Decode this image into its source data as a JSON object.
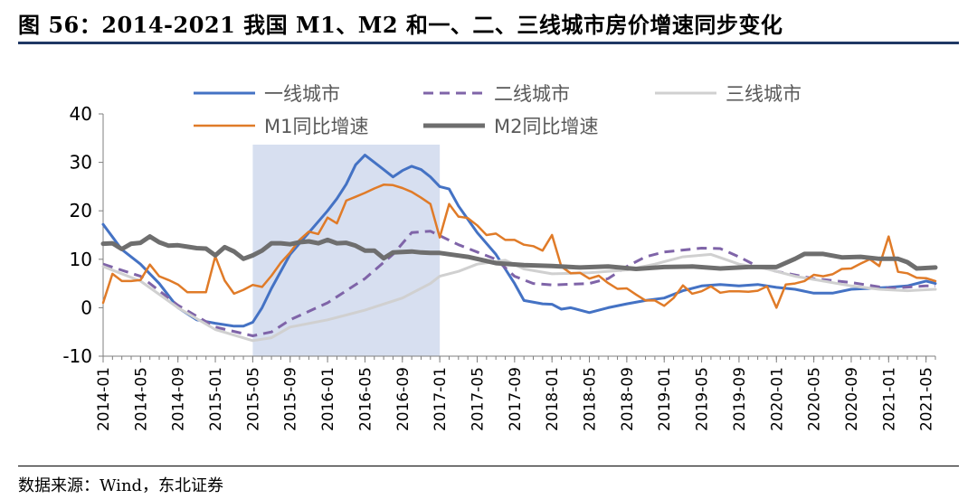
{
  "figure": {
    "title": "图 56：2014-2021 我国 M1、M2 和一、二、三线城市房价增速同步变化",
    "source": "数据来源：Wind，东北证券"
  },
  "chart_data": {
    "type": "line",
    "ylim": [
      -10,
      40
    ],
    "yticks": [
      -10,
      0,
      10,
      20,
      30,
      40
    ],
    "x_start": "2014-01",
    "x_end": "2021-06",
    "xticks": [
      "2014-01",
      "2014-05",
      "2014-09",
      "2015-01",
      "2015-05",
      "2015-09",
      "2016-01",
      "2016-05",
      "2016-09",
      "2017-01",
      "2017-05",
      "2017-09",
      "2018-01",
      "2018-05",
      "2018-09",
      "2019-01",
      "2019-05",
      "2019-09",
      "2020-01",
      "2020-05",
      "2020-09",
      "2021-01",
      "2021-05"
    ],
    "highlight": {
      "from": "2015-05",
      "to": "2017-01",
      "color": "#d7dff0"
    },
    "legend_placement": "top",
    "grid": false,
    "series": [
      {
        "name": "一线城市",
        "color": "#4472c4",
        "dash": "solid",
        "width": 3,
        "points": [
          [
            "2014-01",
            17.2
          ],
          [
            "2014-03",
            12
          ],
          [
            "2014-05",
            9
          ],
          [
            "2014-07",
            5
          ],
          [
            "2014-09",
            0
          ],
          [
            "2014-11",
            -2.5
          ],
          [
            "2015-01",
            -3.2
          ],
          [
            "2015-03",
            -3.8
          ],
          [
            "2015-04",
            -3.8
          ],
          [
            "2015-05",
            -3
          ],
          [
            "2015-06",
            0
          ],
          [
            "2015-07",
            4
          ],
          [
            "2015-09",
            11
          ],
          [
            "2015-11",
            15.5
          ],
          [
            "2016-01",
            20
          ],
          [
            "2016-02",
            22.5
          ],
          [
            "2016-03",
            25.5
          ],
          [
            "2016-04",
            29.5
          ],
          [
            "2016-05",
            31.5
          ],
          [
            "2016-06",
            30
          ],
          [
            "2016-07",
            28.5
          ],
          [
            "2016-08",
            27
          ],
          [
            "2016-09",
            28.3
          ],
          [
            "2016-10",
            29.2
          ],
          [
            "2016-11",
            28.5
          ],
          [
            "2016-12",
            27
          ],
          [
            "2017-01",
            25
          ],
          [
            "2017-02",
            24.5
          ],
          [
            "2017-03",
            21
          ],
          [
            "2017-05",
            15.5
          ],
          [
            "2017-07",
            11
          ],
          [
            "2017-08",
            8
          ],
          [
            "2017-09",
            5
          ],
          [
            "2017-10",
            1.5
          ],
          [
            "2017-12",
            0.8
          ],
          [
            "2018-01",
            0.7
          ],
          [
            "2018-02",
            -0.3
          ],
          [
            "2018-03",
            0
          ],
          [
            "2018-05",
            -1
          ],
          [
            "2018-07",
            0
          ],
          [
            "2018-09",
            0.8
          ],
          [
            "2018-11",
            1.5
          ],
          [
            "2019-01",
            2
          ],
          [
            "2019-03",
            3.5
          ],
          [
            "2019-05",
            4.5
          ],
          [
            "2019-07",
            4.8
          ],
          [
            "2019-09",
            4.5
          ],
          [
            "2019-11",
            4.8
          ],
          [
            "2020-01",
            4.2
          ],
          [
            "2020-03",
            3.8
          ],
          [
            "2020-05",
            3
          ],
          [
            "2020-07",
            3
          ],
          [
            "2020-09",
            3.8
          ],
          [
            "2020-11",
            4
          ],
          [
            "2021-01",
            4.2
          ],
          [
            "2021-03",
            4.5
          ],
          [
            "2021-05",
            5.5
          ],
          [
            "2021-06",
            5
          ]
        ]
      },
      {
        "name": "二线城市",
        "color": "#7f64a8",
        "dash": "11 7",
        "width": 3,
        "points": [
          [
            "2014-01",
            9
          ],
          [
            "2014-05",
            6.5
          ],
          [
            "2014-09",
            0.5
          ],
          [
            "2015-01",
            -4
          ],
          [
            "2015-05",
            -5.8
          ],
          [
            "2015-07",
            -5
          ],
          [
            "2015-09",
            -2.5
          ],
          [
            "2016-01",
            1
          ],
          [
            "2016-05",
            6
          ],
          [
            "2016-08",
            11
          ],
          [
            "2016-10",
            15.5
          ],
          [
            "2016-12",
            15.8
          ],
          [
            "2017-03",
            13
          ],
          [
            "2017-05",
            11.5
          ],
          [
            "2017-07",
            10
          ],
          [
            "2017-09",
            6.5
          ],
          [
            "2017-11",
            5
          ],
          [
            "2018-01",
            4.7
          ],
          [
            "2018-05",
            5
          ],
          [
            "2018-07",
            6
          ],
          [
            "2018-09",
            8.5
          ],
          [
            "2018-11",
            10.5
          ],
          [
            "2019-01",
            11.5
          ],
          [
            "2019-05",
            12.3
          ],
          [
            "2019-07",
            12.2
          ],
          [
            "2019-09",
            10.5
          ],
          [
            "2019-11",
            8.5
          ],
          [
            "2020-01",
            7.5
          ],
          [
            "2020-05",
            6
          ],
          [
            "2020-09",
            5.2
          ],
          [
            "2021-01",
            4
          ],
          [
            "2021-05",
            4.5
          ],
          [
            "2021-06",
            4.5
          ]
        ]
      },
      {
        "name": "三线城市",
        "color": "#d0d0d0",
        "dash": "solid",
        "width": 3,
        "points": [
          [
            "2014-01",
            8.5
          ],
          [
            "2014-05",
            5.5
          ],
          [
            "2014-09",
            0
          ],
          [
            "2015-01",
            -4.5
          ],
          [
            "2015-05",
            -6.8
          ],
          [
            "2015-07",
            -6.2
          ],
          [
            "2015-09",
            -4
          ],
          [
            "2016-01",
            -2.5
          ],
          [
            "2016-05",
            -0.5
          ],
          [
            "2016-09",
            2
          ],
          [
            "2016-12",
            5
          ],
          [
            "2017-01",
            6.5
          ],
          [
            "2017-03",
            7.5
          ],
          [
            "2017-05",
            9
          ],
          [
            "2017-08",
            9.8
          ],
          [
            "2017-10",
            8
          ],
          [
            "2018-01",
            7
          ],
          [
            "2018-05",
            7.2
          ],
          [
            "2018-09",
            7.8
          ],
          [
            "2018-12",
            9
          ],
          [
            "2019-03",
            10.5
          ],
          [
            "2019-06",
            11
          ],
          [
            "2019-09",
            9
          ],
          [
            "2019-12",
            8
          ],
          [
            "2020-03",
            6.5
          ],
          [
            "2020-06",
            5.5
          ],
          [
            "2020-09",
            4.5
          ],
          [
            "2020-12",
            3.8
          ],
          [
            "2021-03",
            3.5
          ],
          [
            "2021-06",
            3.8
          ]
        ]
      },
      {
        "name": "M1同比增速",
        "color": "#e07b28",
        "dash": "solid",
        "width": 2.5,
        "points": [
          [
            "2014-01",
            1
          ],
          [
            "2014-02",
            7
          ],
          [
            "2014-03",
            5.5
          ],
          [
            "2014-04",
            5.5
          ],
          [
            "2014-05",
            5.7
          ],
          [
            "2014-06",
            8.9
          ],
          [
            "2014-07",
            6.5
          ],
          [
            "2014-08",
            5.7
          ],
          [
            "2014-09",
            4.8
          ],
          [
            "2014-10",
            3.2
          ],
          [
            "2014-11",
            3.2
          ],
          [
            "2014-12",
            3.2
          ],
          [
            "2015-01",
            10.6
          ],
          [
            "2015-02",
            5.6
          ],
          [
            "2015-03",
            2.9
          ],
          [
            "2015-04",
            3.7
          ],
          [
            "2015-05",
            4.7
          ],
          [
            "2015-06",
            4.3
          ],
          [
            "2015-07",
            6.6
          ],
          [
            "2015-08",
            9.3
          ],
          [
            "2015-09",
            11.4
          ],
          [
            "2015-10",
            14
          ],
          [
            "2015-11",
            15.7
          ],
          [
            "2015-12",
            15.2
          ],
          [
            "2016-01",
            18.6
          ],
          [
            "2016-02",
            17.4
          ],
          [
            "2016-03",
            22.1
          ],
          [
            "2016-04",
            22.9
          ],
          [
            "2016-05",
            23.7
          ],
          [
            "2016-06",
            24.6
          ],
          [
            "2016-07",
            25.4
          ],
          [
            "2016-08",
            25.3
          ],
          [
            "2016-09",
            24.7
          ],
          [
            "2016-10",
            23.9
          ],
          [
            "2016-11",
            22.7
          ],
          [
            "2016-12",
            21.4
          ],
          [
            "2017-01",
            14.5
          ],
          [
            "2017-02",
            21.4
          ],
          [
            "2017-03",
            18.8
          ],
          [
            "2017-04",
            18.5
          ],
          [
            "2017-05",
            17
          ],
          [
            "2017-06",
            15
          ],
          [
            "2017-07",
            15.3
          ],
          [
            "2017-08",
            14
          ],
          [
            "2017-09",
            14
          ],
          [
            "2017-10",
            13
          ],
          [
            "2017-11",
            12.7
          ],
          [
            "2017-12",
            11.8
          ],
          [
            "2018-01",
            15
          ],
          [
            "2018-02",
            8.5
          ],
          [
            "2018-03",
            7.1
          ],
          [
            "2018-04",
            7.2
          ],
          [
            "2018-05",
            6
          ],
          [
            "2018-06",
            6.6
          ],
          [
            "2018-07",
            5.1
          ],
          [
            "2018-08",
            3.9
          ],
          [
            "2018-09",
            4
          ],
          [
            "2018-10",
            2.7
          ],
          [
            "2018-11",
            1.5
          ],
          [
            "2018-12",
            1.5
          ],
          [
            "2019-01",
            0.4
          ],
          [
            "2019-02",
            2
          ],
          [
            "2019-03",
            4.6
          ],
          [
            "2019-04",
            2.9
          ],
          [
            "2019-05",
            3.4
          ],
          [
            "2019-06",
            4.4
          ],
          [
            "2019-07",
            3.1
          ],
          [
            "2019-08",
            3.4
          ],
          [
            "2019-09",
            3.4
          ],
          [
            "2019-10",
            3.3
          ],
          [
            "2019-11",
            3.5
          ],
          [
            "2019-12",
            4.4
          ],
          [
            "2020-01",
            0
          ],
          [
            "2020-02",
            4.8
          ],
          [
            "2020-03",
            5
          ],
          [
            "2020-04",
            5.5
          ],
          [
            "2020-05",
            6.8
          ],
          [
            "2020-06",
            6.5
          ],
          [
            "2020-07",
            6.9
          ],
          [
            "2020-08",
            8
          ],
          [
            "2020-09",
            8.1
          ],
          [
            "2020-10",
            9.1
          ],
          [
            "2020-11",
            10
          ],
          [
            "2020-12",
            8.6
          ],
          [
            "2021-01",
            14.7
          ],
          [
            "2021-02",
            7.4
          ],
          [
            "2021-03",
            7.1
          ],
          [
            "2021-04",
            6.2
          ],
          [
            "2021-05",
            6.1
          ],
          [
            "2021-06",
            5.5
          ]
        ]
      },
      {
        "name": "M2同比增速",
        "color": "#6e6e6e",
        "dash": "solid",
        "width": 5,
        "points": [
          [
            "2014-01",
            13.2
          ],
          [
            "2014-02",
            13.3
          ],
          [
            "2014-03",
            12.1
          ],
          [
            "2014-04",
            13.2
          ],
          [
            "2014-05",
            13.4
          ],
          [
            "2014-06",
            14.7
          ],
          [
            "2014-07",
            13.5
          ],
          [
            "2014-08",
            12.8
          ],
          [
            "2014-09",
            12.9
          ],
          [
            "2014-10",
            12.6
          ],
          [
            "2014-11",
            12.3
          ],
          [
            "2014-12",
            12.2
          ],
          [
            "2015-01",
            10.8
          ],
          [
            "2015-02",
            12.5
          ],
          [
            "2015-03",
            11.6
          ],
          [
            "2015-04",
            10.1
          ],
          [
            "2015-05",
            10.8
          ],
          [
            "2015-06",
            11.8
          ],
          [
            "2015-07",
            13.3
          ],
          [
            "2015-08",
            13.3
          ],
          [
            "2015-09",
            13.1
          ],
          [
            "2015-10",
            13.5
          ],
          [
            "2015-11",
            13.7
          ],
          [
            "2015-12",
            13.3
          ],
          [
            "2016-01",
            14
          ],
          [
            "2016-02",
            13.3
          ],
          [
            "2016-03",
            13.4
          ],
          [
            "2016-04",
            12.8
          ],
          [
            "2016-05",
            11.8
          ],
          [
            "2016-06",
            11.8
          ],
          [
            "2016-07",
            10.2
          ],
          [
            "2016-08",
            11.4
          ],
          [
            "2016-09",
            11.5
          ],
          [
            "2016-10",
            11.6
          ],
          [
            "2016-11",
            11.4
          ],
          [
            "2016-12",
            11.3
          ],
          [
            "2017-01",
            11.3
          ],
          [
            "2017-04",
            10.5
          ],
          [
            "2017-07",
            9.2
          ],
          [
            "2017-10",
            8.8
          ],
          [
            "2018-01",
            8.6
          ],
          [
            "2018-04",
            8.3
          ],
          [
            "2018-07",
            8.5
          ],
          [
            "2018-10",
            8
          ],
          [
            "2019-01",
            8.4
          ],
          [
            "2019-04",
            8.5
          ],
          [
            "2019-07",
            8.1
          ],
          [
            "2019-10",
            8.4
          ],
          [
            "2020-01",
            8.4
          ],
          [
            "2020-03",
            10.1
          ],
          [
            "2020-04",
            11.1
          ],
          [
            "2020-06",
            11.1
          ],
          [
            "2020-08",
            10.4
          ],
          [
            "2020-10",
            10.5
          ],
          [
            "2020-12",
            10.1
          ],
          [
            "2021-02",
            10.1
          ],
          [
            "2021-03",
            9.4
          ],
          [
            "2021-04",
            8.1
          ],
          [
            "2021-06",
            8.3
          ]
        ]
      }
    ]
  }
}
